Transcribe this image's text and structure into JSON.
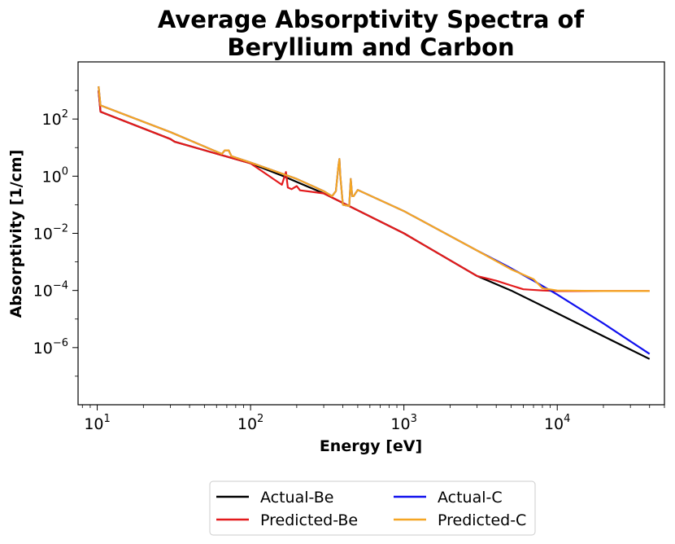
{
  "chart_data": {
    "type": "line",
    "title_lines": [
      "Average Absorptivity Spectra of",
      "Beryllium and Carbon"
    ],
    "xlabel": "Energy [eV]",
    "ylabel": "Absorptivity [1/cm]",
    "xscale": "log",
    "yscale": "log",
    "xlim": [
      7.5,
      50000
    ],
    "ylim": [
      1e-08,
      10000
    ],
    "x_ticks": [
      {
        "value": 10,
        "base": "10",
        "exp": "1"
      },
      {
        "value": 100,
        "base": "10",
        "exp": "2"
      },
      {
        "value": 1000,
        "base": "10",
        "exp": "3"
      },
      {
        "value": 10000,
        "base": "10",
        "exp": "4"
      }
    ],
    "y_ticks": [
      {
        "value": 100,
        "base": "10",
        "exp": "2"
      },
      {
        "value": 1,
        "base": "10",
        "exp": "0"
      },
      {
        "value": 0.01,
        "base": "10",
        "exp": "−2"
      },
      {
        "value": 0.0001,
        "base": "10",
        "exp": "−4"
      },
      {
        "value": 1e-06,
        "base": "10",
        "exp": "−6"
      }
    ],
    "legend_position": "bottom-center, outside plot",
    "series": [
      {
        "name": "Actual-Be",
        "color": "#000000",
        "x": [
          10.2,
          10.5,
          30,
          32,
          100,
          160,
          300,
          1000,
          3000,
          5000,
          10000,
          20000,
          40000
        ],
        "y": [
          1000,
          180,
          20,
          16,
          2.8,
          1.05,
          0.25,
          0.01,
          0.00032,
          0.0001,
          1.6e-05,
          2.5e-06,
          4e-07
        ]
      },
      {
        "name": "Predicted-Be",
        "color": "#e31a1c",
        "x": [
          10.2,
          10.5,
          30,
          32,
          100,
          160,
          170,
          175,
          185,
          200,
          210,
          300,
          1000,
          3000,
          4000,
          5000,
          6000,
          8000,
          10000,
          20000,
          40000
        ],
        "y": [
          1000,
          180,
          20,
          16,
          2.8,
          0.5,
          1.4,
          0.4,
          0.35,
          0.45,
          0.32,
          0.25,
          0.01,
          0.00032,
          0.00022,
          0.00015,
          0.00011,
          0.0001,
          9.5e-05,
          9.5e-05,
          9.5e-05
        ]
      },
      {
        "name": "Actual-C",
        "color": "#1010ee",
        "x": [
          10.2,
          10.5,
          30,
          65,
          68,
          72,
          75,
          100,
          200,
          300,
          340,
          360,
          375,
          380,
          385,
          400,
          440,
          450,
          460,
          470,
          500,
          1000,
          3000,
          5000,
          7000,
          10000,
          20000,
          40000
        ],
        "y": [
          1400,
          300,
          35,
          6,
          8,
          8,
          5,
          3,
          0.8,
          0.3,
          0.2,
          0.3,
          2.5,
          4,
          1,
          0.1,
          0.09,
          0.8,
          0.2,
          0.2,
          0.33,
          0.06,
          0.0025,
          0.0006,
          0.00022,
          7.2e-05,
          7e-06,
          6e-07
        ]
      },
      {
        "name": "Predicted-C",
        "color": "#f5a623",
        "x": [
          10.2,
          10.5,
          30,
          65,
          68,
          72,
          75,
          100,
          200,
          300,
          340,
          360,
          375,
          380,
          385,
          400,
          440,
          450,
          460,
          470,
          500,
          1000,
          3000,
          5000,
          7000,
          8000,
          10000,
          20000,
          40000
        ],
        "y": [
          1400,
          300,
          35,
          6,
          8,
          8,
          5,
          3,
          0.8,
          0.3,
          0.2,
          0.3,
          2.5,
          4,
          1,
          0.1,
          0.09,
          0.8,
          0.2,
          0.2,
          0.33,
          0.06,
          0.0025,
          0.00055,
          0.00025,
          0.00012,
          0.0001,
          9.5e-05,
          9.5e-05
        ]
      }
    ]
  }
}
